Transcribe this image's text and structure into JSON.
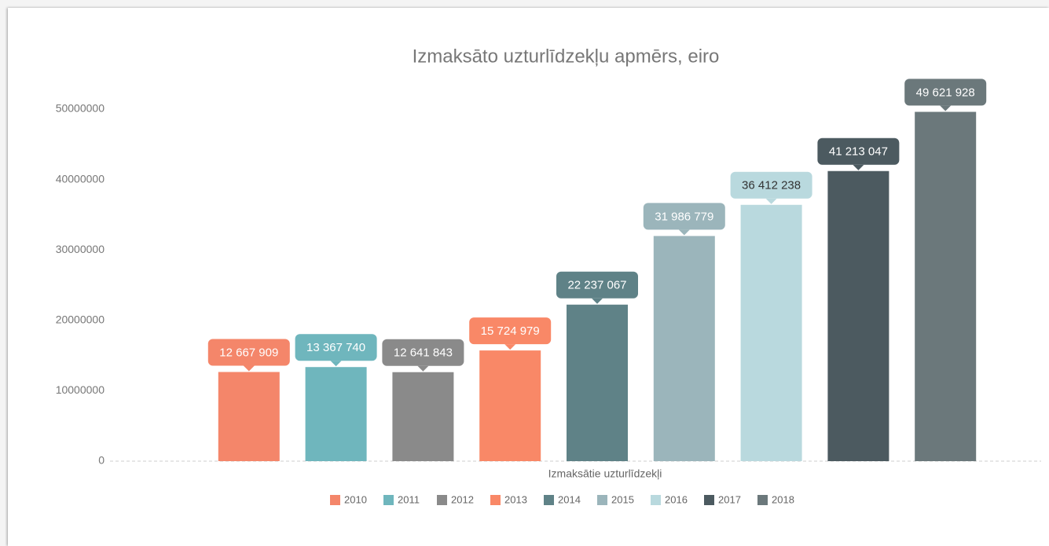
{
  "chart_data": {
    "type": "bar",
    "title": "Izmaksāto uzturlīdzekļu apmērs, eiro",
    "categories": [
      "Izmaksātie uzturlīdzekļi"
    ],
    "series": [
      {
        "name": "2010",
        "color": "#f4866a",
        "values": [
          12667909
        ],
        "value_labels": [
          "12 667 909"
        ]
      },
      {
        "name": "2011",
        "color": "#6fb6bd",
        "values": [
          13367740
        ],
        "value_labels": [
          "13 367 740"
        ]
      },
      {
        "name": "2012",
        "color": "#8a8a8a",
        "values": [
          12641843
        ],
        "value_labels": [
          "12 641 843"
        ]
      },
      {
        "name": "2013",
        "color": "#f98867",
        "values": [
          15724979
        ],
        "value_labels": [
          "15 724 979"
        ]
      },
      {
        "name": "2014",
        "color": "#5f8287",
        "values": [
          22237067
        ],
        "value_labels": [
          "22 237 067"
        ]
      },
      {
        "name": "2015",
        "color": "#9bb5bb",
        "values": [
          31986779
        ],
        "value_labels": [
          "31 986 779"
        ]
      },
      {
        "name": "2016",
        "color": "#b9d9de",
        "values": [
          36412238
        ],
        "value_labels": [
          "36 412 238"
        ]
      },
      {
        "name": "2017",
        "color": "#4c5a60",
        "values": [
          41213047
        ],
        "value_labels": [
          "41 213 047"
        ]
      },
      {
        "name": "2018",
        "color": "#6b787b",
        "values": [
          49621928
        ],
        "value_labels": [
          "49 621 928"
        ]
      }
    ],
    "ylim": [
      0,
      55000000
    ],
    "yticks": [
      0,
      10000000,
      20000000,
      30000000,
      40000000,
      50000000
    ],
    "grid": false,
    "legend": "bottom"
  }
}
